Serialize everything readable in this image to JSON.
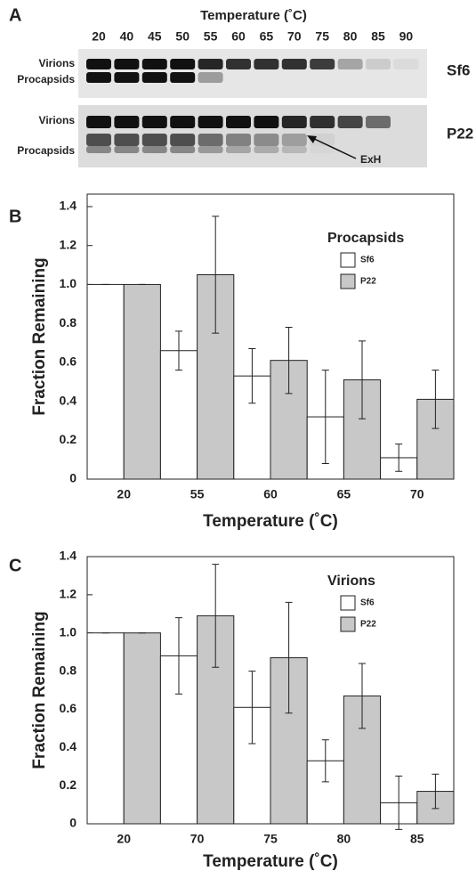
{
  "panel_labels": [
    "A",
    "B",
    "C"
  ],
  "gel": {
    "title": "Temperature (˚C)",
    "lanes": [
      "20",
      "40",
      "45",
      "50",
      "55",
      "60",
      "65",
      "70",
      "75",
      "80",
      "85",
      "90"
    ],
    "gels": [
      {
        "name": "Sf6",
        "rows": [
          "Virions",
          "Procapsids"
        ]
      },
      {
        "name": "P22",
        "rows": [
          "Virions",
          "Procapsids"
        ]
      }
    ],
    "annotation": "ExH"
  },
  "chart_data": [
    {
      "type": "bar",
      "xlabel": "Temperature (˚C)",
      "ylabel": "Fraction Remaining",
      "legend_title": "Procapsids",
      "categories": [
        "20",
        "55",
        "60",
        "65",
        "70"
      ],
      "series": [
        {
          "name": "Sf6",
          "color": "#ffffff",
          "values": [
            1.0,
            0.66,
            0.53,
            0.32,
            0.11
          ],
          "errors": [
            0,
            0.1,
            0.14,
            0.24,
            0.07
          ]
        },
        {
          "name": "P22",
          "color": "#c8c8c8",
          "values": [
            1.0,
            1.05,
            0.61,
            0.51,
            0.41
          ],
          "errors": [
            0,
            0.3,
            0.17,
            0.2,
            0.15
          ]
        }
      ],
      "ylim": [
        0,
        1.4
      ],
      "yticks": [
        0,
        0.2,
        0.4,
        0.6,
        0.8,
        {
          "value": 1,
          "label": "1.0"
        },
        1.2,
        1.4
      ],
      "legend": "upper right"
    },
    {
      "type": "bar",
      "xlabel": "Temperature (˚C)",
      "ylabel": "Fraction Remaining",
      "legend_title": "Virions",
      "categories": [
        "20",
        "70",
        "75",
        "80",
        "85"
      ],
      "series": [
        {
          "name": "Sf6",
          "color": "#ffffff",
          "values": [
            1.0,
            0.88,
            0.61,
            0.33,
            0.11
          ],
          "errors": [
            0,
            0.2,
            0.19,
            0.11,
            0.14
          ]
        },
        {
          "name": "P22",
          "color": "#c8c8c8",
          "values": [
            1.0,
            1.09,
            0.87,
            0.67,
            0.17
          ],
          "errors": [
            0,
            0.27,
            0.29,
            0.17,
            0.09
          ]
        }
      ],
      "ylim": [
        0,
        1.4
      ],
      "yticks": [
        0,
        0.2,
        0.4,
        0.6,
        0.8,
        {
          "value": 1,
          "label": "1.0"
        },
        1.2,
        1.4
      ],
      "legend": "upper right"
    }
  ]
}
